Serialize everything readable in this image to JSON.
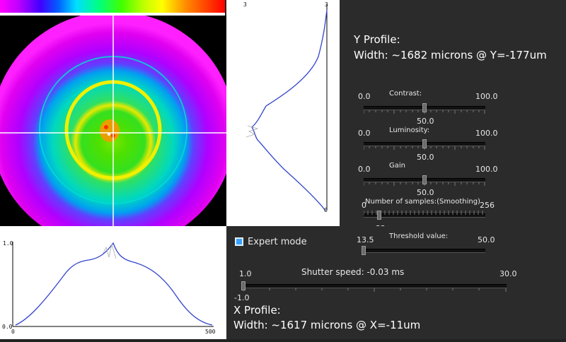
{
  "y_plot": {
    "top_left_label": "3",
    "top_right_label": "3",
    "bottom_right_label": "0"
  },
  "x_plot": {
    "y_max_label": "1.0",
    "y_min_label": "0.0",
    "x_min_label": "0",
    "x_max_label": "500"
  },
  "y_profile": {
    "title": "Y Profile:",
    "width_text": "Width: ~1682 microns @ Y=-177um"
  },
  "sliders": {
    "contrast": {
      "label": "Contrast:",
      "min": "0.0",
      "max": "100.0",
      "value": "50.0",
      "fraction": 0.5
    },
    "luminosity": {
      "label": "Luminosity:",
      "min": "0.0",
      "max": "100.0",
      "value": "50.0",
      "fraction": 0.5
    },
    "gain": {
      "label": "Gain",
      "min": "0.0",
      "max": "100.0",
      "value": "50.0",
      "fraction": 0.5
    },
    "samples": {
      "label": "Number of samples:(Smoothing)",
      "min": "0",
      "max": "256",
      "value": "32",
      "fraction": 0.125
    },
    "threshold": {
      "label": "Threshold value:",
      "min": "13.5",
      "max": "50.0",
      "value": "13.5",
      "fraction": 0.0
    },
    "shutter": {
      "label": "Shutter speed: -0.03 ms",
      "min": "1.0",
      "max": "30.0",
      "value": "-1.0",
      "fraction": 0.0
    }
  },
  "expert_mode": {
    "label": "Expert mode",
    "checked": true
  },
  "x_profile": {
    "title": "X Profile:",
    "width_text": "Width: ~1617 microns @ X=-11um"
  },
  "colors": {
    "profile_line": "#3344cc",
    "crosshair": "#ffffff",
    "panel_bg": "#2b2b2b",
    "expert_checkbox": "#3aa0ff"
  }
}
